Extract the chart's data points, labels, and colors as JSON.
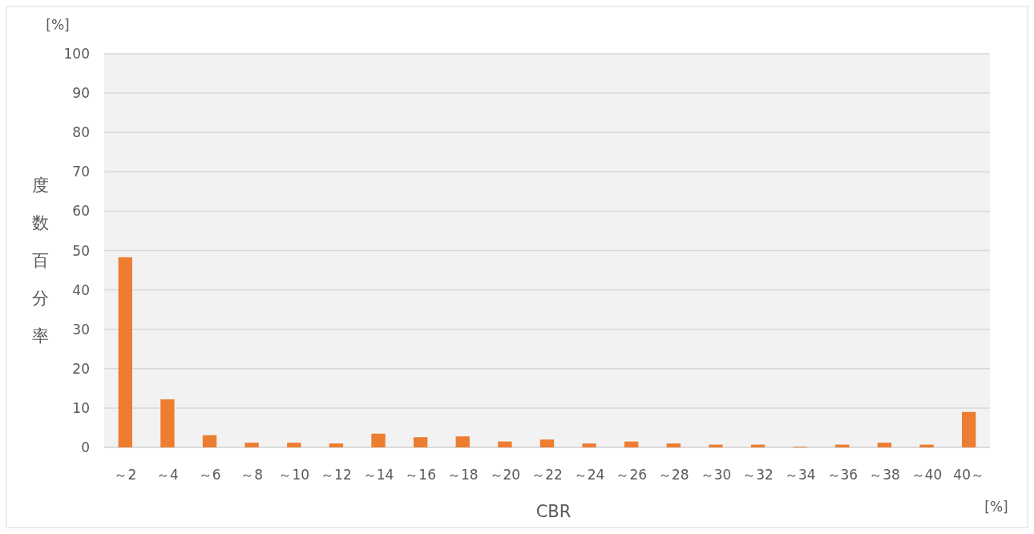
{
  "chart_data": {
    "type": "bar",
    "xlabel": "CBR",
    "ylabel": "度数百分率",
    "annotations": [
      "[%]",
      "[%]"
    ],
    "categories": [
      "～2",
      "～4",
      "～6",
      "～8",
      "～10",
      "～12",
      "～14",
      "～16",
      "～18",
      "～20",
      "～22",
      "～24",
      "～26",
      "～28",
      "～30",
      "～32",
      "～34",
      "～36",
      "～38",
      "～40",
      "40～"
    ],
    "values": [
      48.3,
      12.2,
      3.1,
      1.2,
      1.2,
      1.0,
      3.5,
      2.6,
      2.8,
      1.5,
      2.0,
      1.0,
      1.5,
      1.0,
      0.7,
      0.7,
      0.2,
      0.7,
      1.2,
      0.7,
      9.0
    ],
    "color": "#ed7d31",
    "ylim": [
      0,
      100
    ],
    "yticks": [
      0,
      10,
      20,
      30,
      40,
      50,
      60,
      70,
      80,
      90,
      100
    ],
    "grid": "y"
  }
}
